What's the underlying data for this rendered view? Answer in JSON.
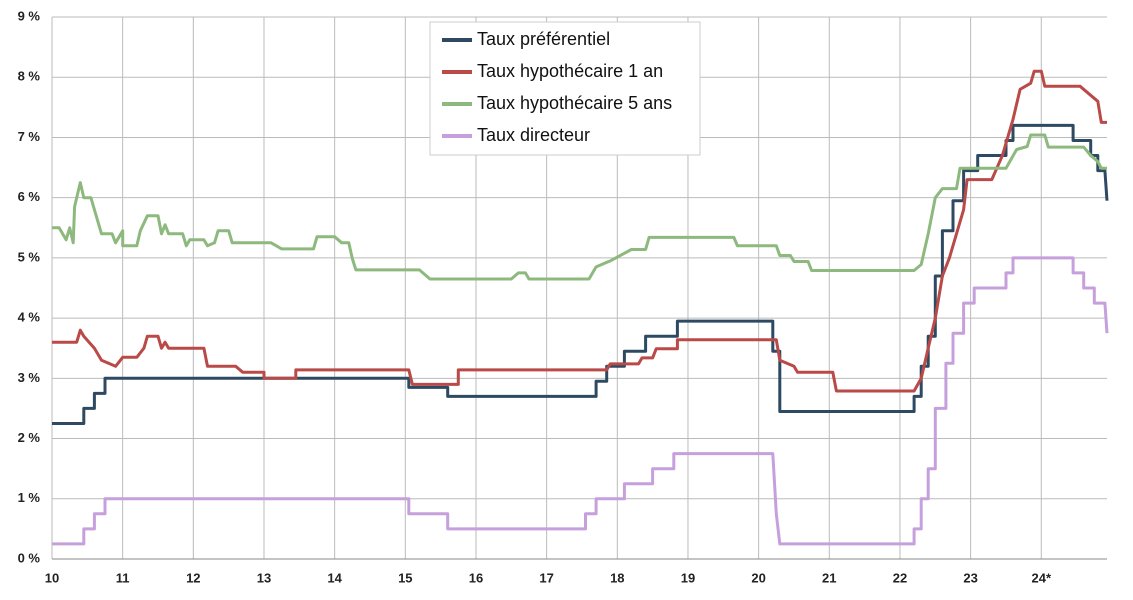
{
  "chart_data": {
    "type": "line",
    "xlim": [
      10,
      24.93
    ],
    "xticks": [
      10,
      11,
      12,
      13,
      14,
      15,
      16,
      17,
      18,
      19,
      20,
      21,
      22,
      23,
      {
        "value": 24,
        "label": "24*"
      }
    ],
    "ylim": [
      0,
      9
    ],
    "yticks": [
      {
        "value": 0,
        "label": "0 %"
      },
      {
        "value": 1,
        "label": "1 %"
      },
      {
        "value": 2,
        "label": "2 %"
      },
      {
        "value": 3,
        "label": "3 %"
      },
      {
        "value": 4,
        "label": "4 %"
      },
      {
        "value": 5,
        "label": "5 %"
      },
      {
        "value": 6,
        "label": "6 %"
      },
      {
        "value": 7,
        "label": "7 %"
      },
      {
        "value": 8,
        "label": "8 %"
      },
      {
        "value": 9,
        "label": "9 %"
      }
    ],
    "grid": true,
    "legend_position": "upper center",
    "series": [
      {
        "name": "Taux préférentiel",
        "color": "#2e4a62",
        "x": [
          10,
          10.45,
          10.45,
          10.6,
          10.6,
          10.75,
          10.75,
          15.05,
          15.05,
          15.6,
          15.6,
          17.7,
          17.7,
          17.85,
          17.85,
          18.1,
          18.1,
          18.4,
          18.4,
          18.85,
          18.85,
          20.2,
          20.2,
          20.3,
          20.3,
          22.2,
          22.2,
          22.3,
          22.3,
          22.4,
          22.4,
          22.5,
          22.5,
          22.6,
          22.6,
          22.75,
          22.75,
          22.9,
          22.9,
          23.1,
          23.1,
          23.5,
          23.5,
          23.6,
          23.6,
          24.45,
          24.45,
          24.7,
          24.7,
          24.8,
          24.8,
          24.9,
          24.93
        ],
        "values": [
          2.25,
          2.25,
          2.5,
          2.5,
          2.75,
          2.75,
          3.0,
          3.0,
          2.85,
          2.85,
          2.7,
          2.7,
          2.95,
          2.95,
          3.2,
          3.2,
          3.45,
          3.45,
          3.7,
          3.7,
          3.95,
          3.95,
          3.45,
          3.45,
          2.45,
          2.45,
          2.7,
          2.7,
          3.2,
          3.2,
          3.7,
          3.7,
          4.7,
          4.7,
          5.45,
          5.45,
          5.95,
          5.95,
          6.45,
          6.45,
          6.7,
          6.7,
          6.95,
          6.95,
          7.2,
          7.2,
          6.95,
          6.95,
          6.7,
          6.7,
          6.45,
          6.45,
          5.95
        ]
      },
      {
        "name": "Taux hypothécaire 1 an",
        "color": "#b94a48",
        "x": [
          10,
          10.35,
          10.4,
          10.45,
          10.6,
          10.7,
          10.9,
          11.0,
          11.2,
          11.3,
          11.35,
          11.5,
          11.55,
          11.6,
          11.65,
          12.15,
          12.2,
          12.6,
          12.7,
          13.0,
          13.0,
          13.45,
          13.45,
          15.05,
          15.1,
          15.75,
          15.75,
          17.85,
          17.9,
          18.3,
          18.35,
          18.5,
          18.55,
          18.85,
          18.85,
          20.25,
          20.3,
          20.5,
          20.55,
          21.05,
          21.1,
          22.2,
          22.3,
          22.4,
          22.5,
          22.6,
          22.7,
          22.9,
          22.95,
          23.3,
          23.45,
          23.6,
          23.7,
          23.85,
          23.9,
          24.0,
          24.05,
          24.55,
          24.7,
          24.8,
          24.85,
          24.93
        ],
        "values": [
          3.6,
          3.6,
          3.8,
          3.7,
          3.5,
          3.3,
          3.2,
          3.35,
          3.35,
          3.5,
          3.7,
          3.7,
          3.5,
          3.6,
          3.5,
          3.5,
          3.2,
          3.2,
          3.1,
          3.1,
          3.0,
          3.0,
          3.14,
          3.14,
          2.9,
          2.9,
          3.14,
          3.14,
          3.24,
          3.24,
          3.34,
          3.34,
          3.49,
          3.49,
          3.64,
          3.64,
          3.3,
          3.2,
          3.1,
          3.1,
          2.79,
          2.79,
          3.0,
          3.5,
          4.0,
          4.7,
          5.0,
          5.8,
          6.3,
          6.3,
          6.7,
          7.3,
          7.8,
          7.9,
          8.1,
          8.1,
          7.85,
          7.85,
          7.7,
          7.6,
          7.25,
          7.25
        ]
      },
      {
        "name": "Taux hypothécaire 5 ans",
        "color": "#8db97e",
        "x": [
          10,
          10.1,
          10.2,
          10.25,
          10.3,
          10.32,
          10.35,
          10.4,
          10.45,
          10.55,
          10.6,
          10.7,
          10.85,
          10.9,
          11.0,
          11.0,
          11.2,
          11.25,
          11.35,
          11.5,
          11.55,
          11.6,
          11.65,
          11.85,
          11.9,
          11.95,
          12.15,
          12.2,
          12.3,
          12.35,
          12.5,
          12.55,
          13.1,
          13.25,
          13.7,
          13.75,
          14.0,
          14.1,
          14.2,
          14.25,
          14.3,
          15.2,
          15.35,
          16.5,
          16.6,
          16.7,
          16.75,
          17.6,
          17.7,
          17.9,
          18.2,
          18.4,
          18.45,
          19.65,
          19.7,
          20.25,
          20.3,
          20.45,
          20.5,
          20.7,
          20.75,
          22.2,
          22.3,
          22.4,
          22.5,
          22.6,
          22.8,
          22.85,
          23.5,
          23.65,
          23.8,
          23.85,
          24.05,
          24.1,
          24.6,
          24.7,
          24.8,
          24.85,
          24.93
        ],
        "values": [
          5.5,
          5.5,
          5.3,
          5.5,
          5.25,
          5.85,
          6.0,
          6.25,
          6.0,
          6.0,
          5.8,
          5.4,
          5.4,
          5.25,
          5.45,
          5.2,
          5.2,
          5.45,
          5.7,
          5.7,
          5.4,
          5.55,
          5.4,
          5.4,
          5.2,
          5.3,
          5.3,
          5.2,
          5.25,
          5.45,
          5.45,
          5.25,
          5.25,
          5.15,
          5.15,
          5.35,
          5.35,
          5.25,
          5.25,
          4.99,
          4.8,
          4.8,
          4.65,
          4.65,
          4.75,
          4.75,
          4.65,
          4.65,
          4.85,
          4.95,
          5.14,
          5.14,
          5.34,
          5.34,
          5.2,
          5.2,
          5.04,
          5.04,
          4.94,
          4.94,
          4.79,
          4.79,
          4.89,
          5.4,
          6.0,
          6.15,
          6.15,
          6.49,
          6.49,
          6.8,
          6.85,
          7.04,
          7.04,
          6.84,
          6.84,
          6.7,
          6.6,
          6.49,
          6.49
        ]
      },
      {
        "name": "Taux directeur",
        "color": "#c6a0dc",
        "x": [
          10,
          10.45,
          10.45,
          10.6,
          10.6,
          10.75,
          10.75,
          15.05,
          15.05,
          15.6,
          15.6,
          17.55,
          17.55,
          17.7,
          17.7,
          18.1,
          18.1,
          18.5,
          18.5,
          18.8,
          18.8,
          20.2,
          20.25,
          20.3,
          22.2,
          22.2,
          22.3,
          22.3,
          22.4,
          22.4,
          22.5,
          22.5,
          22.65,
          22.65,
          22.75,
          22.75,
          22.9,
          22.9,
          23.05,
          23.05,
          23.5,
          23.5,
          23.6,
          23.6,
          24.45,
          24.45,
          24.6,
          24.6,
          24.75,
          24.75,
          24.9,
          24.93
        ],
        "values": [
          0.25,
          0.25,
          0.5,
          0.5,
          0.75,
          0.75,
          1.0,
          1.0,
          0.75,
          0.75,
          0.5,
          0.5,
          0.75,
          0.75,
          1.0,
          1.0,
          1.25,
          1.25,
          1.5,
          1.5,
          1.75,
          1.75,
          0.75,
          0.25,
          0.25,
          0.5,
          0.5,
          1.0,
          1.0,
          1.5,
          1.5,
          2.5,
          2.5,
          3.25,
          3.25,
          3.75,
          3.75,
          4.25,
          4.25,
          4.5,
          4.5,
          4.75,
          4.75,
          5.0,
          5.0,
          4.75,
          4.75,
          4.5,
          4.5,
          4.25,
          4.25,
          3.75
        ]
      }
    ]
  }
}
